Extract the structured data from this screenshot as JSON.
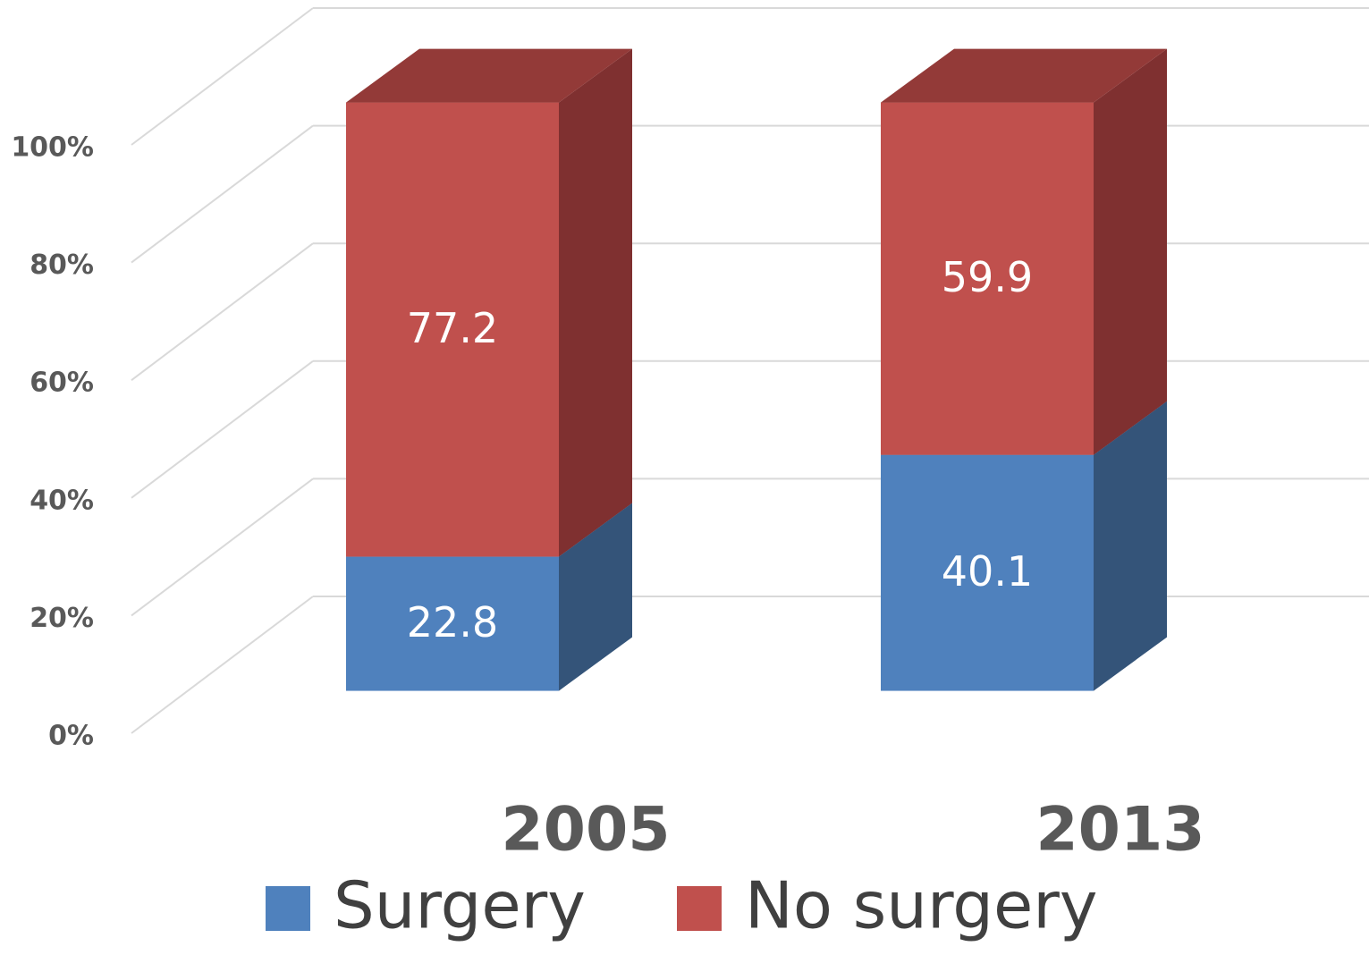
{
  "chart_data": {
    "type": "bar3d_stacked",
    "categories": [
      "2005",
      "2013"
    ],
    "series": [
      {
        "name": "Surgery",
        "color": "#4f81bd",
        "side_color": "#345479",
        "top_color": "#3f6797",
        "values": [
          22.8,
          40.1
        ]
      },
      {
        "name": "No surgery",
        "color": "#c0504d",
        "side_color": "#7f3030",
        "top_color": "#933a38",
        "values": [
          77.2,
          59.9
        ]
      }
    ],
    "ylim": [
      0,
      100
    ],
    "yticks": [
      {
        "value": 0,
        "label": "0%"
      },
      {
        "value": 20,
        "label": "20%"
      },
      {
        "value": 40,
        "label": "40%"
      },
      {
        "value": 60,
        "label": "60%"
      },
      {
        "value": 80,
        "label": "80%"
      },
      {
        "value": 100,
        "label": "100%"
      }
    ],
    "grid": true,
    "legend": "bottom"
  }
}
